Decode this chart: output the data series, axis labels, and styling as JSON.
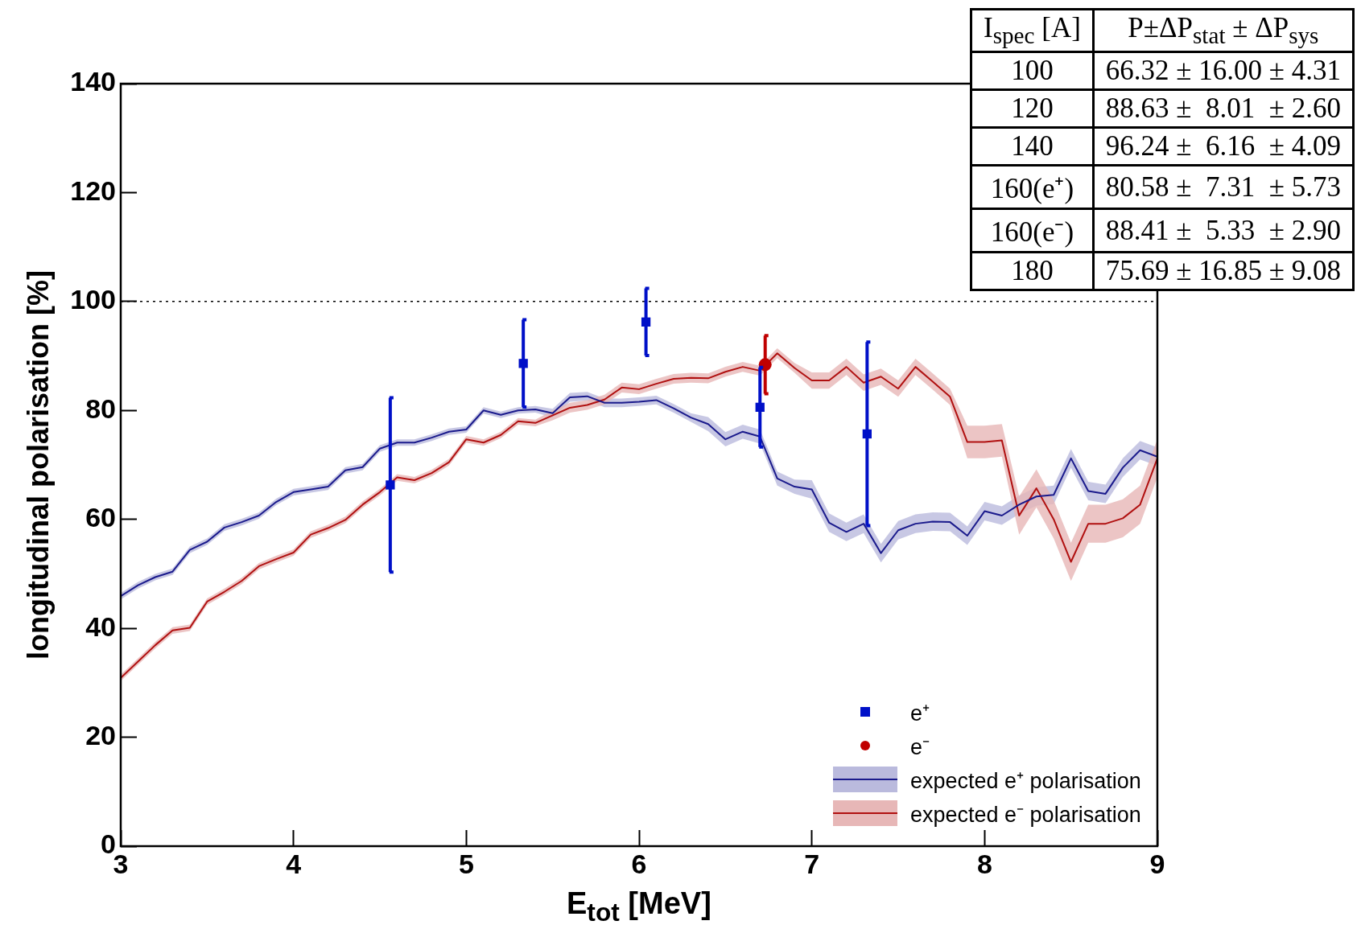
{
  "chart_data": {
    "type": "line",
    "xlabel": "E$_{tot}$ [MeV]",
    "ylabel": "longitudinal polarisation [%]",
    "xlim": [
      3,
      9
    ],
    "xticks": [
      3,
      4,
      5,
      6,
      7,
      8,
      9
    ],
    "ylim": [
      0,
      140
    ],
    "yticks": [
      0,
      20,
      40,
      60,
      80,
      100,
      120,
      140
    ],
    "legend": "bottom right",
    "x": [
      3.0,
      3.1,
      3.2,
      3.3,
      3.4,
      3.5,
      3.6,
      3.7,
      3.8,
      3.9,
      4.0,
      4.1,
      4.2,
      4.3,
      4.4,
      4.5,
      4.6,
      4.7,
      4.8,
      4.9,
      5.0,
      5.1,
      5.2,
      5.3,
      5.4,
      5.5,
      5.6,
      5.7,
      5.8,
      5.9,
      6.0,
      6.1,
      6.2,
      6.3,
      6.4,
      6.5,
      6.6,
      6.7,
      6.8,
      6.9,
      7.0,
      7.1,
      7.2,
      7.3,
      7.4,
      7.5,
      7.6,
      7.7,
      7.8,
      7.9,
      8.0,
      8.1,
      8.2,
      8.3,
      8.4,
      8.5,
      8.6,
      8.7,
      8.8,
      8.9,
      9.0
    ],
    "ref_lines": [
      {
        "axis": "y",
        "value": 100,
        "color": "#000000",
        "line_style": "dotted"
      }
    ],
    "series": [
      {
        "name": "e⁺",
        "type": "scatter",
        "marker": "square",
        "color": "#0010c8",
        "x": [
          4.56,
          5.33,
          6.04,
          6.7,
          7.32
        ],
        "values": [
          66.32,
          88.63,
          96.24,
          80.58,
          75.69
        ],
        "errors": [
          16.0,
          8.01,
          6.16,
          7.31,
          16.85
        ]
      },
      {
        "name": "e⁻",
        "type": "scatter",
        "marker": "circle",
        "color": "#c00000",
        "x": [
          6.73
        ],
        "values": [
          88.41
        ],
        "errors": [
          5.33
        ]
      },
      {
        "name": "expected e⁺ polarisation",
        "type": "line",
        "color": "#1a1a8c",
        "values": [
          45.9,
          47.9,
          49.4,
          50.4,
          54.4,
          55.9,
          58.5,
          59.5,
          60.7,
          63.2,
          65.0,
          65.5,
          66.0,
          69.0,
          69.6,
          73.0,
          74.1,
          74.1,
          75.0,
          76.1,
          76.5,
          80.0,
          79.2,
          80.0,
          80.2,
          79.5,
          82.4,
          82.6,
          81.4,
          81.4,
          81.6,
          81.9,
          80.4,
          78.7,
          77.5,
          74.7,
          76.1,
          75.2,
          67.5,
          66.0,
          65.5,
          59.4,
          57.7,
          59.2,
          53.8,
          58.0,
          59.2,
          59.6,
          59.5,
          57.0,
          61.5,
          60.7,
          62.7,
          64.2,
          64.5,
          71.2,
          65.2,
          64.7,
          69.5,
          72.7,
          71.5
        ],
        "lower": [
          45.3,
          47.3,
          48.8,
          49.8,
          53.8,
          55.3,
          57.9,
          58.9,
          60.1,
          62.6,
          64.4,
          64.9,
          65.4,
          68.4,
          69.0,
          72.4,
          73.5,
          73.5,
          74.4,
          75.5,
          75.9,
          79.4,
          78.6,
          79.4,
          79.6,
          78.7,
          81.6,
          81.8,
          80.6,
          80.6,
          80.8,
          81.1,
          79.6,
          77.9,
          76.2,
          73.4,
          74.8,
          73.9,
          66.2,
          64.7,
          63.8,
          57.7,
          56.0,
          57.5,
          52.1,
          56.3,
          57.5,
          57.9,
          57.8,
          55.3,
          59.8,
          59.0,
          61.0,
          62.5,
          62.8,
          69.5,
          63.5,
          63.0,
          67.8,
          71.0,
          69.8
        ],
        "upper": [
          46.5,
          48.5,
          50.0,
          51.0,
          55.0,
          56.5,
          59.1,
          60.1,
          61.3,
          63.8,
          65.6,
          66.1,
          66.6,
          69.6,
          70.2,
          73.6,
          74.7,
          74.7,
          75.6,
          76.7,
          77.1,
          80.6,
          79.8,
          80.6,
          80.8,
          80.3,
          83.2,
          83.4,
          82.2,
          82.2,
          82.4,
          82.7,
          81.2,
          79.5,
          78.8,
          76.0,
          77.4,
          76.5,
          68.8,
          67.3,
          67.2,
          61.1,
          59.4,
          60.9,
          55.5,
          59.7,
          60.9,
          61.3,
          61.2,
          58.7,
          63.2,
          62.4,
          64.4,
          65.9,
          66.2,
          72.9,
          66.9,
          66.4,
          71.2,
          74.4,
          73.2
        ]
      },
      {
        "name": "expected e⁻ polarisation",
        "type": "line",
        "color": "#b01010",
        "values": [
          30.9,
          33.9,
          36.9,
          39.6,
          40.1,
          44.9,
          46.7,
          48.7,
          51.4,
          52.7,
          53.9,
          57.2,
          58.4,
          59.9,
          62.7,
          65.0,
          67.7,
          67.2,
          68.5,
          70.5,
          74.7,
          74.1,
          75.5,
          78.0,
          77.7,
          79.1,
          80.5,
          81.0,
          82.0,
          84.2,
          83.9,
          84.9,
          85.8,
          86.0,
          85.9,
          87.1,
          88.0,
          87.3,
          90.5,
          87.8,
          85.5,
          85.5,
          88.0,
          85.1,
          86.2,
          84.0,
          88.0,
          85.3,
          82.5,
          74.2,
          74.2,
          74.5,
          60.7,
          65.7,
          60.0,
          52.2,
          59.2,
          59.2,
          60.2,
          62.7,
          71.2
        ],
        "lower": [
          30.3,
          33.3,
          36.3,
          39.0,
          39.5,
          44.3,
          46.1,
          48.1,
          50.8,
          52.1,
          53.3,
          56.6,
          57.8,
          59.3,
          62.1,
          64.4,
          67.1,
          66.6,
          67.9,
          69.9,
          74.1,
          73.5,
          74.9,
          77.4,
          77.1,
          78.2,
          79.6,
          80.1,
          81.1,
          83.3,
          83.0,
          84.0,
          84.9,
          85.1,
          85.0,
          86.2,
          87.1,
          86.4,
          89.6,
          86.9,
          84.0,
          84.0,
          86.5,
          83.6,
          84.7,
          82.5,
          86.5,
          83.8,
          81.0,
          71.2,
          71.2,
          71.5,
          57.2,
          62.2,
          56.5,
          48.7,
          55.7,
          55.7,
          56.7,
          59.2,
          67.7
        ],
        "upper": [
          31.5,
          34.5,
          37.5,
          40.2,
          40.7,
          45.5,
          47.3,
          49.3,
          52.0,
          53.3,
          54.5,
          57.8,
          59.0,
          60.5,
          63.3,
          65.6,
          68.3,
          67.8,
          69.1,
          71.1,
          75.3,
          74.7,
          76.1,
          78.6,
          78.3,
          80.0,
          81.4,
          81.9,
          82.9,
          85.1,
          84.8,
          85.8,
          86.7,
          86.9,
          86.8,
          88.0,
          88.9,
          88.2,
          91.4,
          88.7,
          87.0,
          87.0,
          89.5,
          86.6,
          87.7,
          85.5,
          89.5,
          86.8,
          84.0,
          77.2,
          77.2,
          77.5,
          64.2,
          69.2,
          63.5,
          55.7,
          62.7,
          62.7,
          63.7,
          66.2,
          74.7
        ]
      }
    ],
    "annotations": [
      "I$_{spec}$ [A]",
      "P±ΔP$_{stat}$ ± ΔP$_{sys}$",
      "100",
      "66.32 ± 16.00 ± 4.31",
      "120",
      "88.63 ±  8.01  ± 2.60",
      "140",
      "96.24 ±  6.16  ± 4.09",
      "160(e⁺)",
      "80.58 ±  7.31  ± 5.73",
      "160(e⁻)",
      "88.41 ±  5.33  ± 2.90",
      "180",
      "75.69 ± 16.85 ± 9.08"
    ]
  }
}
